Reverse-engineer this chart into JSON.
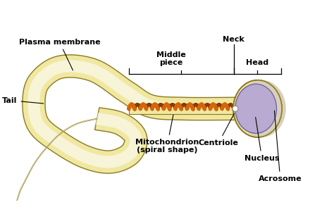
{
  "background_color": "#ffffff",
  "colors": {
    "outer_membrane_fill": "#f0e8a0",
    "outer_membrane_edge": "#8a7a20",
    "inner_fill": "#f8f4d8",
    "mitochondria_orange": "#d4650a",
    "mitochondria_dark": "#8B3A00",
    "nucleus_fill": "#b8aad0",
    "nucleus_edge": "#7060a0",
    "acrosome_fill": "#d8d0b8",
    "acrosome_edge": "#9a9070",
    "centriole_fill": "#ffffff",
    "centriole_edge": "#888888",
    "thin_tail": "#9a8a30",
    "label_color": "#000000",
    "bracket_color": "#000000",
    "line_color": "#000000"
  },
  "labels": {
    "tail": "Tail",
    "plasma_membrane": "Plasma membrane",
    "middle_piece": "Middle\npiece",
    "neck": "Neck",
    "head": "Head",
    "mitochondrion": "Mitochondrion\n(spiral shape)",
    "centriole": "Centriole",
    "nucleus": "Nucleus",
    "acrosome": "Acrosome"
  },
  "font_size": 8.0,
  "font_weight": "bold"
}
